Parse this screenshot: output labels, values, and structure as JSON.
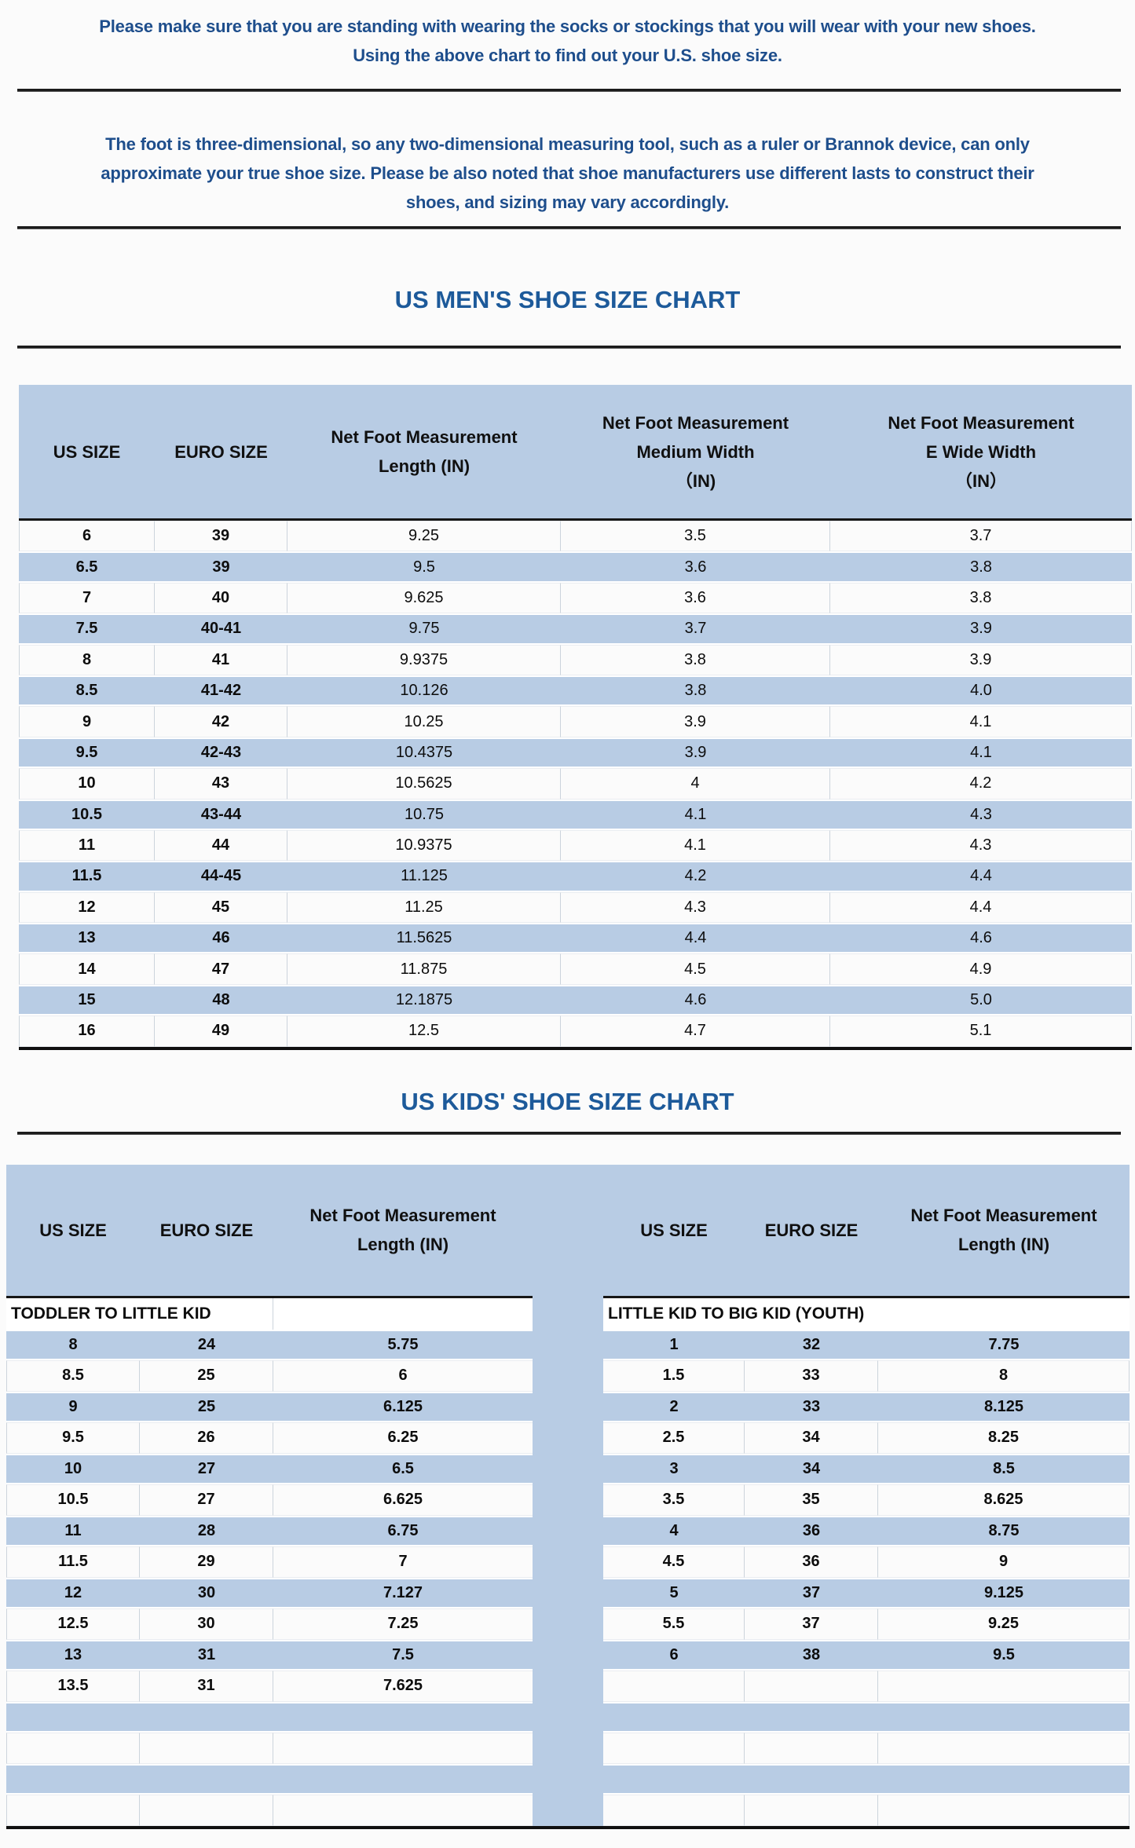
{
  "intro": {
    "lines": [
      "Please make sure that you are standing with wearing the socks or stockings that you will wear with your new shoes.",
      "Using the above chart to find out your U.S. shoe size."
    ]
  },
  "note": {
    "lines": [
      "The foot is three-dimensional, so any two-dimensional measuring tool, such as a ruler or Brannok device, can only",
      "approximate your true shoe size. Please be also noted that shoe manufacturers use different lasts to construct their",
      "shoes, and sizing may vary accordingly."
    ]
  },
  "mens_chart": {
    "title": "US MEN'S SHOE SIZE CHART",
    "headers": [
      "US SIZE",
      "EURO SIZE",
      "Net Foot Measurement\nLength (IN)",
      "Net Foot Measurement\nMedium Width\n（IN)",
      "Net Foot Measurement\nE Wide Width\n（IN）"
    ],
    "rows": [
      [
        "6",
        "39",
        "9.25",
        "3.5",
        "3.7"
      ],
      [
        "6.5",
        "39",
        "9.5",
        "3.6",
        "3.8"
      ],
      [
        "7",
        "40",
        "9.625",
        "3.6",
        "3.8"
      ],
      [
        "7.5",
        "40-41",
        "9.75",
        "3.7",
        "3.9"
      ],
      [
        "8",
        "41",
        "9.9375",
        "3.8",
        "3.9"
      ],
      [
        "8.5",
        "41-42",
        "10.126",
        "3.8",
        "4.0"
      ],
      [
        "9",
        "42",
        "10.25",
        "3.9",
        "4.1"
      ],
      [
        "9.5",
        "42-43",
        "10.4375",
        "3.9",
        "4.1"
      ],
      [
        "10",
        "43",
        "10.5625",
        "4",
        "4.2"
      ],
      [
        "10.5",
        "43-44",
        "10.75",
        "4.1",
        "4.3"
      ],
      [
        "11",
        "44",
        "10.9375",
        "4.1",
        "4.3"
      ],
      [
        "11.5",
        "44-45",
        "11.125",
        "4.2",
        "4.4"
      ],
      [
        "12",
        "45",
        "11.25",
        "4.3",
        "4.4"
      ],
      [
        "13",
        "46",
        "11.5625",
        "4.4",
        "4.6"
      ],
      [
        "14",
        "47",
        "11.875",
        "4.5",
        "4.9"
      ],
      [
        "15",
        "48",
        "12.1875",
        "4.6",
        "5.0"
      ],
      [
        "16",
        "49",
        "12.5",
        "4.7",
        "5.1"
      ]
    ]
  },
  "kids_chart": {
    "title": "US KIDS' SHOE SIZE CHART",
    "headers": [
      "US SIZE",
      "EURO SIZE",
      "Net Foot Measurement\nLength (IN)",
      "US SIZE",
      "EURO SIZE",
      "Net Foot Measurement\nLength (IN)"
    ],
    "left_section_label": "TODDLER TO LITTLE KID",
    "right_section_label": "LITTLE KID TO BIG KID (YOUTH)",
    "left_rows": [
      [
        "8",
        "24",
        "5.75"
      ],
      [
        "8.5",
        "25",
        "6"
      ],
      [
        "9",
        "25",
        "6.125"
      ],
      [
        "9.5",
        "26",
        "6.25"
      ],
      [
        "10",
        "27",
        "6.5"
      ],
      [
        "10.5",
        "27",
        "6.625"
      ],
      [
        "11",
        "28",
        "6.75"
      ],
      [
        "11.5",
        "29",
        "7"
      ],
      [
        "12",
        "30",
        "7.127"
      ],
      [
        "12.5",
        "30",
        "7.25"
      ],
      [
        "13",
        "31",
        "7.5"
      ],
      [
        "13.5",
        "31",
        "7.625"
      ]
    ],
    "right_rows": [
      [
        "1",
        "32",
        "7.75"
      ],
      [
        "1.5",
        "33",
        "8"
      ],
      [
        "2",
        "33",
        "8.125"
      ],
      [
        "2.5",
        "34",
        "8.25"
      ],
      [
        "3",
        "34",
        "8.5"
      ],
      [
        "3.5",
        "35",
        "8.625"
      ],
      [
        "4",
        "36",
        "8.75"
      ],
      [
        "4.5",
        "36",
        "9"
      ],
      [
        "5",
        "37",
        "9.125"
      ],
      [
        "5.5",
        "37",
        "9.25"
      ],
      [
        "6",
        "38",
        "9.5"
      ]
    ],
    "total_rows": 16
  },
  "colors": {
    "accent_blue": "#b8cce4",
    "title_blue": "#1d5a9a",
    "paragraph_blue": "#1e4e8c",
    "line_black": "#1c1c1c"
  }
}
